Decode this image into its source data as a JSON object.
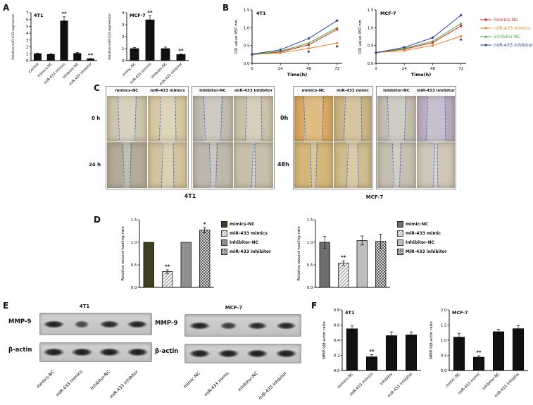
{
  "panels": {
    "A": "A",
    "B": "B",
    "C": "C",
    "D": "D",
    "E": "E",
    "F": "F"
  },
  "panelC": {
    "left": {
      "columns": [
        "mimics-NC",
        "miR-433 mimics",
        "Inhibitor-NC",
        "miR-433 inhibitor"
      ],
      "rows": [
        "0 h",
        "24 h"
      ],
      "caption": "4T1"
    },
    "right": {
      "columns": [
        "mimics-NC",
        "miR-433 mimic",
        "Inhibitor-NC",
        "miR-433 inhibitor"
      ],
      "rows": [
        "0h",
        "48h"
      ],
      "caption": "MCF-7"
    }
  },
  "panelE": {
    "left": {
      "title": "4T1",
      "bands": [
        "MMP-9",
        "β-actin"
      ],
      "lanes": [
        "mimics-NC",
        "miR-433 mimics",
        "Inhibitor-NC",
        "miR-433 inhibitor"
      ],
      "mmp9_intensity": [
        0.92,
        0.4,
        0.82,
        0.88
      ],
      "actin_intensity": [
        0.95,
        0.95,
        0.95,
        0.95
      ]
    },
    "right": {
      "title": "MCF-7",
      "bands": [
        "MMP-9",
        "β-actin"
      ],
      "lanes": [
        "mimic-NC",
        "miR-433 mimic",
        "Inhibitor-NC",
        "miR-433 inhibitor"
      ],
      "mmp9_intensity": [
        0.9,
        0.55,
        0.8,
        0.85
      ],
      "actin_intensity": [
        0.95,
        0.95,
        0.95,
        0.95
      ]
    }
  },
  "colors": {
    "wound_line": "#4a6fd0",
    "bar_black": "#111111"
  },
  "chart_data": [
    {
      "id": "A-4T1",
      "type": "bar",
      "title": "4T1",
      "ylabel": "Relative miR-433 expression",
      "categories": [
        "Control",
        "mimics-NC",
        "miR-433 mimics",
        "Inhibitor-NC",
        "miR-433 inhibitor"
      ],
      "values": [
        1.0,
        0.9,
        5.8,
        1.05,
        0.25
      ],
      "errors": [
        0.1,
        0.08,
        0.6,
        0.15,
        0.05
      ],
      "sig": [
        "",
        "",
        "**",
        "",
        "**"
      ],
      "ylim": [
        0,
        7
      ],
      "yticks": [
        "0",
        "1",
        "2",
        "3",
        "4",
        "5",
        "6",
        "7"
      ],
      "bar_color": "#111111"
    },
    {
      "id": "A-MCF7",
      "type": "bar",
      "title": "MCF-7",
      "ylabel": "Relative miR-433 expression",
      "categories": [
        "mimic-NC",
        "miR-433 mimics",
        "inhibitor-NC",
        "miR-433 inhibitor"
      ],
      "values": [
        1.0,
        3.4,
        1.0,
        0.5
      ],
      "errors": [
        0.1,
        0.35,
        0.12,
        0.06
      ],
      "sig": [
        "",
        "**",
        "",
        "**"
      ],
      "ylim": [
        0,
        4
      ],
      "yticks": [
        "0",
        "1",
        "2",
        "3",
        "4"
      ],
      "bar_color": "#111111"
    },
    {
      "id": "B-4T1",
      "type": "line",
      "title": "4T1",
      "ylabel": "OD value 450 nm",
      "xlabel": "Time(h)",
      "x": [
        0,
        24,
        48,
        72
      ],
      "ylim": [
        0,
        1.5
      ],
      "yticks": [
        "0.0",
        "0.5",
        "1.0",
        "1.5"
      ],
      "series": [
        {
          "name": "mimics-NC",
          "color": "#e0201b",
          "marker": "square",
          "values": [
            0.25,
            0.32,
            0.52,
            0.95
          ]
        },
        {
          "name": "miR-433 mimics",
          "color": "#f07f28",
          "marker": "circle",
          "values": [
            0.25,
            0.29,
            0.42,
            0.57
          ]
        },
        {
          "name": "inhibitor NC",
          "color": "#3fa93f",
          "marker": "triangle",
          "values": [
            0.25,
            0.34,
            0.57,
            1.0
          ]
        },
        {
          "name": "miR-433 inhibitor",
          "color": "#2b3f9e",
          "marker": "diamond",
          "values": [
            0.26,
            0.38,
            0.7,
            1.2
          ]
        }
      ],
      "sig_points": [
        {
          "x": 48,
          "series": 1,
          "dy": 9,
          "text": "*"
        },
        {
          "x": 72,
          "series": 1,
          "dy": 9,
          "text": "*"
        }
      ]
    },
    {
      "id": "B-MCF7",
      "type": "line",
      "title": "MCF-7",
      "ylabel": "OD value 450 nm",
      "xlabel": "Time(h)",
      "x": [
        0,
        24,
        48,
        72
      ],
      "ylim": [
        0,
        1.5
      ],
      "yticks": [
        "0.0",
        "0.5",
        "1.0",
        "1.5"
      ],
      "series": [
        {
          "name": "mimics-NC",
          "color": "#e0201b",
          "marker": "square",
          "values": [
            0.3,
            0.4,
            0.58,
            1.05
          ]
        },
        {
          "name": "miR-433 mimics",
          "color": "#f07f28",
          "marker": "circle",
          "values": [
            0.3,
            0.36,
            0.5,
            0.76
          ]
        },
        {
          "name": "inhibitor NC",
          "color": "#3fa93f",
          "marker": "triangle",
          "values": [
            0.3,
            0.42,
            0.62,
            1.12
          ]
        },
        {
          "name": "miR-433 inhibitor",
          "color": "#2b3f9e",
          "marker": "diamond",
          "values": [
            0.3,
            0.45,
            0.72,
            1.35
          ]
        }
      ],
      "sig_points": [
        {
          "x": 72,
          "series": 1,
          "dy": 9,
          "text": "*"
        }
      ]
    },
    {
      "id": "D-4T1",
      "type": "bar",
      "ylabel": "Relative wound healing rate",
      "categories": [
        "mimics-NC",
        "miR-433 mimics",
        "Inhibitor-NC",
        "miR-433 inhibitor"
      ],
      "values": [
        1.0,
        0.35,
        1.0,
        1.27
      ],
      "errors": [
        0,
        0.04,
        0,
        0.06
      ],
      "sig": [
        "",
        "**",
        "",
        "*"
      ],
      "ylim": [
        0,
        1.5
      ],
      "yticks": [
        "0.0",
        "0.5",
        "1.0",
        "1.5"
      ],
      "fills": [
        "#3f3f23",
        "hatch",
        "#8f8f8f",
        "cross"
      ],
      "show_xlabels": false,
      "legend_labels": [
        "mimics-NC",
        "miR-433 mimics",
        "Inhibitor-NC",
        "miR-433 inhibitor"
      ]
    },
    {
      "id": "D-MCF7",
      "type": "bar",
      "ylabel": "Relative wound healing rate",
      "categories": [
        "mimic-NC",
        "miR-433 mimic",
        "Inhibitor-NC",
        "MiR-433 inhibitor"
      ],
      "values": [
        1.0,
        0.54,
        1.04,
        1.02
      ],
      "errors": [
        0.13,
        0.05,
        0.1,
        0.16
      ],
      "sig": [
        "",
        "**",
        "",
        ""
      ],
      "ylim": [
        0,
        1.5
      ],
      "yticks": [
        "0.0",
        "0.5",
        "1.0",
        "1.5"
      ],
      "fills": [
        "#6e6e6e",
        "hatch",
        "#bdbdbd",
        "cross"
      ],
      "show_xlabels": false,
      "legend_labels": [
        "mimic-NC",
        "miR-433 mimic",
        "Inhibitor-NC",
        "MiR-433 inhibitor"
      ]
    },
    {
      "id": "F-4T1",
      "type": "bar",
      "title": "4T1",
      "ylabel": "MMP-9/β-actin ratio",
      "categories": [
        "mimics-NC",
        "miR-433 mimics",
        "inhibitor",
        "miR-433 inhibitor"
      ],
      "values": [
        0.55,
        0.18,
        0.46,
        0.47
      ],
      "errors": [
        0.04,
        0.03,
        0.05,
        0.04
      ],
      "sig": [
        "",
        "**",
        "",
        ""
      ],
      "ylim": [
        0,
        0.8
      ],
      "yticks": [
        "0.0",
        "0.2",
        "0.4",
        "0.6",
        "0.8"
      ],
      "bar_color": "#111111"
    },
    {
      "id": "F-MCF7",
      "type": "bar",
      "title": "MCF-7",
      "ylabel": "MMP-9/β-actin ratio",
      "categories": [
        "mimic-NC",
        "miR-433 mimic",
        "inhibitor-NC",
        "miR-433 inhibitor"
      ],
      "values": [
        1.1,
        0.44,
        1.28,
        1.38
      ],
      "errors": [
        0.13,
        0.05,
        0.08,
        0.1
      ],
      "sig": [
        "",
        "**",
        "",
        ""
      ],
      "ylim": [
        0,
        2
      ],
      "yticks": [
        "0.0",
        "0.5",
        "1.0",
        "1.5",
        "2.0"
      ],
      "bar_color": "#111111"
    }
  ]
}
